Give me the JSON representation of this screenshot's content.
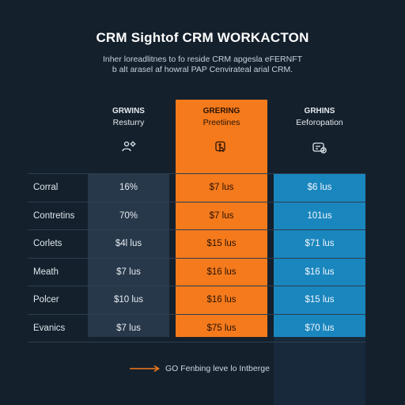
{
  "header": {
    "title": "CRM Sightof CRM WORKACTON",
    "subtitle_line1": "Inher loreadlitnes to fo reside CRM apgesla eFERNFT",
    "subtitle_line2": "b alt arasel af howral PAP Cenvirateal arial CRM."
  },
  "columns": [
    {
      "title": "GRWINS",
      "subtitle": "Resturry",
      "icon": "gear-person-icon"
    },
    {
      "title": "GRERING",
      "subtitle": "Preetiines",
      "icon": "touch-screen-icon"
    },
    {
      "title": "GRHINS",
      "subtitle": "Eeforopation",
      "icon": "card-check-icon"
    }
  ],
  "rows": [
    {
      "label": "Corral",
      "values": [
        "16%",
        "$7 lus",
        "$6 lus"
      ]
    },
    {
      "label": "Contretins",
      "values": [
        "70%",
        "$7 lus",
        "101us"
      ]
    },
    {
      "label": "Corlets",
      "values": [
        "$4l lus",
        "$15 lus",
        "$71 lus"
      ]
    },
    {
      "label": "Meath",
      "values": [
        "$7 lus",
        "$16 lus",
        "$16 lus"
      ]
    },
    {
      "label": "Polcer",
      "values": [
        "$10 lus",
        "$16 lus",
        "$15 lus"
      ]
    },
    {
      "label": "Evanics",
      "values": [
        "$7 lus",
        "$75 lus",
        "$70 lus"
      ]
    }
  ],
  "footer": {
    "text": "GO Fenbing leve lo Intberge"
  },
  "colors": {
    "background": "#14202c",
    "navy_column": "#27384a",
    "highlight_column": "#f47a1c",
    "blue_column": "#1a86be",
    "arrow": "#f47a1c"
  }
}
